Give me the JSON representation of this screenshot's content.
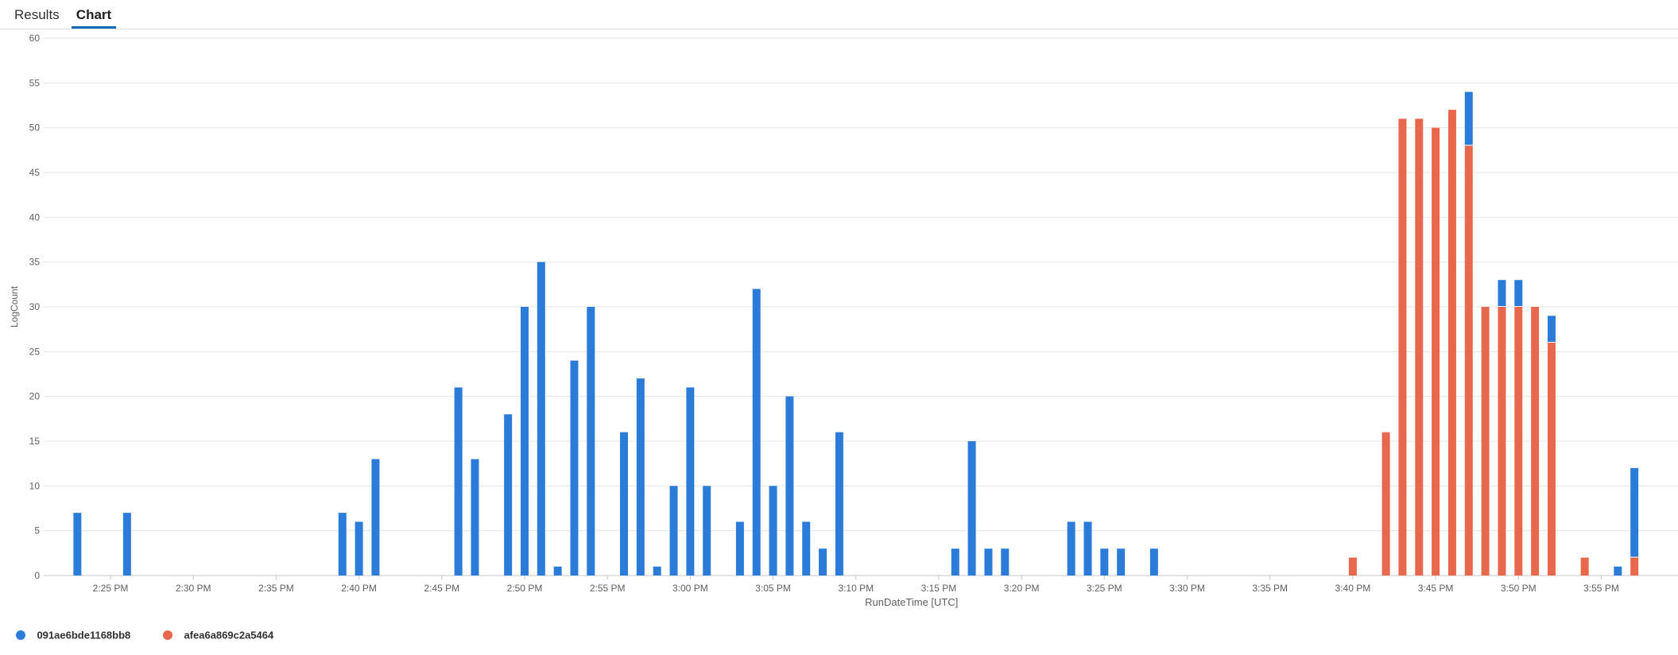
{
  "tabs": [
    {
      "label": "Results",
      "active": false
    },
    {
      "label": "Chart",
      "active": true
    }
  ],
  "colors": {
    "accent": "#0f6cbd",
    "series_blue": "#2b7cd9",
    "series_orange": "#e8684e",
    "grid": "#e6e6e6"
  },
  "chart_data": {
    "type": "bar",
    "stacked": true,
    "xlabel": "RunDateTime [UTC]",
    "ylabel": "LogCount",
    "ylim": [
      0,
      60
    ],
    "yticks": [
      0,
      5,
      10,
      15,
      20,
      25,
      30,
      35,
      40,
      45,
      50,
      55,
      60
    ],
    "x_axis_unit": "minutes",
    "xlim": [
      "2:22 PM",
      "3:58 PM"
    ],
    "xticks": [
      "2:25 PM",
      "2:30 PM",
      "2:35 PM",
      "2:40 PM",
      "2:45 PM",
      "2:50 PM",
      "2:55 PM",
      "3:00 PM",
      "3:05 PM",
      "3:10 PM",
      "3:15 PM",
      "3:20 PM",
      "3:25 PM",
      "3:30 PM",
      "3:35 PM",
      "3:40 PM",
      "3:45 PM",
      "3:50 PM",
      "3:55 PM"
    ],
    "grid": true,
    "legend_position": "bottom-left",
    "series": [
      {
        "name": "091ae6bde1168bb8",
        "color": "#2b7cd9",
        "points": [
          [
            "2:23 PM",
            7
          ],
          [
            "2:26 PM",
            7
          ],
          [
            "2:39 PM",
            7
          ],
          [
            "2:40 PM",
            6
          ],
          [
            "2:41 PM",
            13
          ],
          [
            "2:46 PM",
            21
          ],
          [
            "2:47 PM",
            13
          ],
          [
            "2:49 PM",
            18
          ],
          [
            "2:50 PM",
            30
          ],
          [
            "2:51 PM",
            35
          ],
          [
            "2:52 PM",
            1
          ],
          [
            "2:53 PM",
            24
          ],
          [
            "2:54 PM",
            30
          ],
          [
            "2:56 PM",
            16
          ],
          [
            "2:57 PM",
            22
          ],
          [
            "2:58 PM",
            1
          ],
          [
            "2:59 PM",
            10
          ],
          [
            "3:00 PM",
            21
          ],
          [
            "3:01 PM",
            10
          ],
          [
            "3:03 PM",
            6
          ],
          [
            "3:04 PM",
            32
          ],
          [
            "3:05 PM",
            10
          ],
          [
            "3:06 PM",
            20
          ],
          [
            "3:07 PM",
            6
          ],
          [
            "3:08 PM",
            3
          ],
          [
            "3:09 PM",
            16
          ],
          [
            "3:16 PM",
            3
          ],
          [
            "3:17 PM",
            15
          ],
          [
            "3:18 PM",
            3
          ],
          [
            "3:19 PM",
            3
          ],
          [
            "3:23 PM",
            6
          ],
          [
            "3:24 PM",
            6
          ],
          [
            "3:25 PM",
            3
          ],
          [
            "3:26 PM",
            3
          ],
          [
            "3:28 PM",
            3
          ],
          [
            "3:47 PM",
            6
          ],
          [
            "3:49 PM",
            3
          ],
          [
            "3:50 PM",
            3
          ],
          [
            "3:52 PM",
            3
          ],
          [
            "3:56 PM",
            1
          ],
          [
            "3:57 PM",
            10
          ]
        ]
      },
      {
        "name": "afea6a869c2a5464",
        "color": "#e8684e",
        "points": [
          [
            "3:40 PM",
            2
          ],
          [
            "3:42 PM",
            16
          ],
          [
            "3:43 PM",
            51
          ],
          [
            "3:44 PM",
            51
          ],
          [
            "3:45 PM",
            50
          ],
          [
            "3:46 PM",
            52
          ],
          [
            "3:47 PM",
            48
          ],
          [
            "3:48 PM",
            30
          ],
          [
            "3:49 PM",
            30
          ],
          [
            "3:50 PM",
            30
          ],
          [
            "3:51 PM",
            30
          ],
          [
            "3:52 PM",
            26
          ],
          [
            "3:54 PM",
            2
          ],
          [
            "3:57 PM",
            2
          ]
        ]
      }
    ]
  }
}
